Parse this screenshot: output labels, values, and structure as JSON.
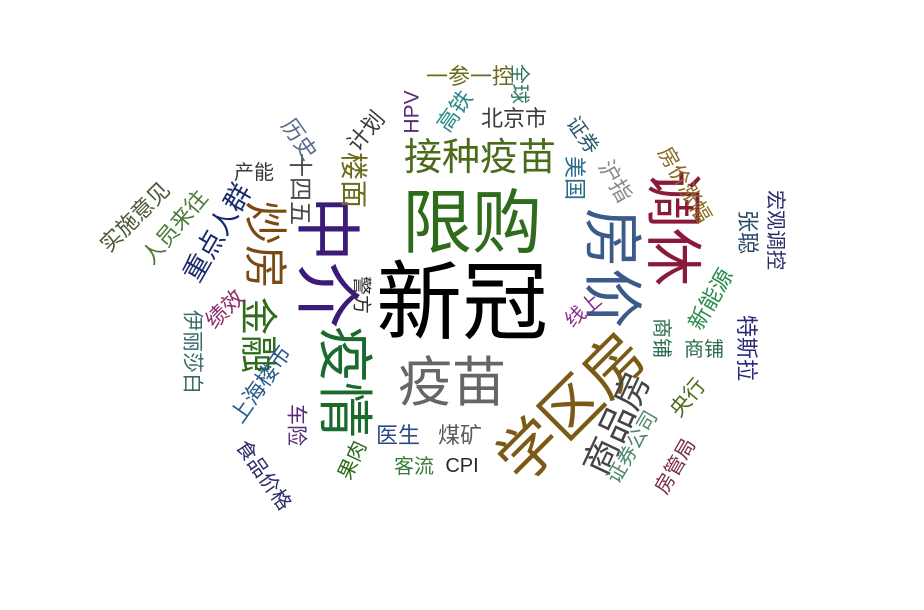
{
  "words": [
    {
      "text": "新冠",
      "color": "#000000"
    },
    {
      "text": "限购",
      "color": "#2e6b1a"
    },
    {
      "text": "中介",
      "color": "#3b1a78"
    },
    {
      "text": "房价",
      "color": "#3a5a8a"
    },
    {
      "text": "调休",
      "color": "#8a1a3a"
    },
    {
      "text": "学区房",
      "color": "#7a5a14"
    },
    {
      "text": "疫情",
      "color": "#1c6b2e"
    },
    {
      "text": "疫苗",
      "color": "#666666"
    },
    {
      "text": "接种疫苗",
      "color": "#4a6b1a"
    },
    {
      "text": "炒房",
      "color": "#7a4a14"
    },
    {
      "text": "商品房",
      "color": "#444444"
    },
    {
      "text": "金融",
      "color": "#2e6b1a"
    },
    {
      "text": "重点人群",
      "color": "#1a2a6b"
    },
    {
      "text": "楼面",
      "color": "#6b6b1a"
    },
    {
      "text": "十四五",
      "color": "#4a4a4a"
    },
    {
      "text": "北京市",
      "color": "#3a3a3a"
    },
    {
      "text": "高铁",
      "color": "#2a8a8a"
    },
    {
      "text": "一参一控",
      "color": "#6b6b1a"
    },
    {
      "text": "全球",
      "color": "#2a7a5a"
    },
    {
      "text": "HPV",
      "color": "#5a2a7a"
    },
    {
      "text": "计划",
      "color": "#3a3a3a"
    },
    {
      "text": "历史",
      "color": "#5a6a8a"
    },
    {
      "text": "产能",
      "color": "#3a3a3a"
    },
    {
      "text": "人员来往",
      "color": "#4a7a3a"
    },
    {
      "text": "实施意见",
      "color": "#4a5a3a"
    },
    {
      "text": "证券",
      "color": "#2a5a6a"
    },
    {
      "text": "美国",
      "color": "#2a6a8a"
    },
    {
      "text": "沪指",
      "color": "#8a8a8a"
    },
    {
      "text": "房价涨幅",
      "color": "#8a6a1a"
    },
    {
      "text": "宏观调控",
      "color": "#2a2a6a"
    },
    {
      "text": "张聪",
      "color": "#2a4a6a"
    },
    {
      "text": "新能源",
      "color": "#2a8a4a"
    },
    {
      "text": "特斯拉",
      "color": "#2a2a7a"
    },
    {
      "text": "商铺",
      "color": "#2a6a4a"
    },
    {
      "text": "央行",
      "color": "#4a6a1a"
    },
    {
      "text": "证券公司",
      "color": "#4a8a6a"
    },
    {
      "text": "房管局",
      "color": "#7a2a4a"
    },
    {
      "text": "线上",
      "color": "#8a2a8a"
    },
    {
      "text": "警方",
      "color": "#2a2a2a"
    },
    {
      "text": "绩效",
      "color": "#8a2a6a"
    },
    {
      "text": "上海楼市",
      "color": "#2a5a8a"
    },
    {
      "text": "伊丽莎白",
      "color": "#3a6a6a"
    },
    {
      "text": "车险",
      "color": "#5a2a7a"
    },
    {
      "text": "食品价格",
      "color": "#2a2a6a"
    },
    {
      "text": "医生",
      "color": "#2a4a8a"
    },
    {
      "text": "煤矿",
      "color": "#5a5a5a"
    },
    {
      "text": "果肉",
      "color": "#2a6a1a"
    },
    {
      "text": "客流",
      "color": "#3a7a3a"
    },
    {
      "text": "CPI",
      "color": "#2a2a2a"
    }
  ]
}
